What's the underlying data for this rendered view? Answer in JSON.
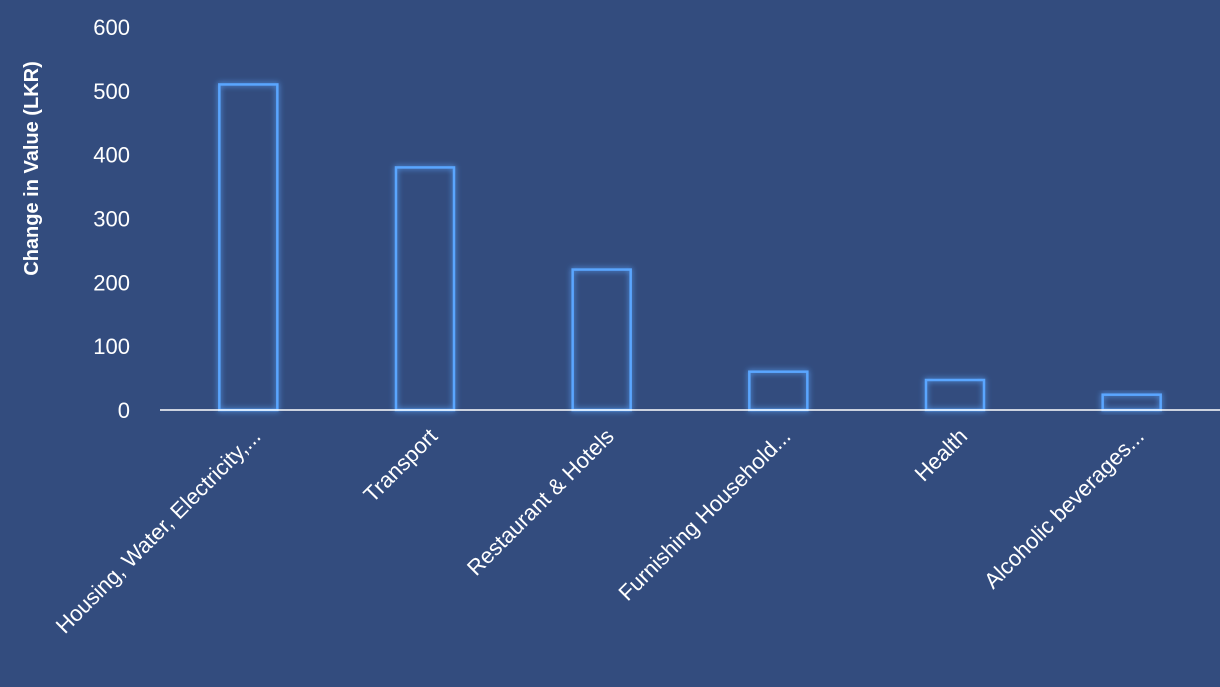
{
  "chart_data": {
    "type": "bar",
    "title": "",
    "xlabel": "",
    "ylabel": "Change in Value (LKR)",
    "categories": [
      "Housing, Water, Electricity,...",
      "Transport",
      "Restaurant & Hotels",
      "Furnishing Household...",
      "Health",
      "Alcoholic beverages..."
    ],
    "values": [
      510,
      380,
      220,
      60,
      47,
      24
    ],
    "ylim": [
      0,
      600
    ],
    "yticks": [
      0,
      100,
      200,
      300,
      400,
      500,
      600
    ],
    "grid": false,
    "legend": "none",
    "colors": {
      "background": "#334c7e",
      "bar_outline": "#5aa6ff",
      "text": "#ffffff",
      "axis_line": "#ffffff"
    }
  }
}
